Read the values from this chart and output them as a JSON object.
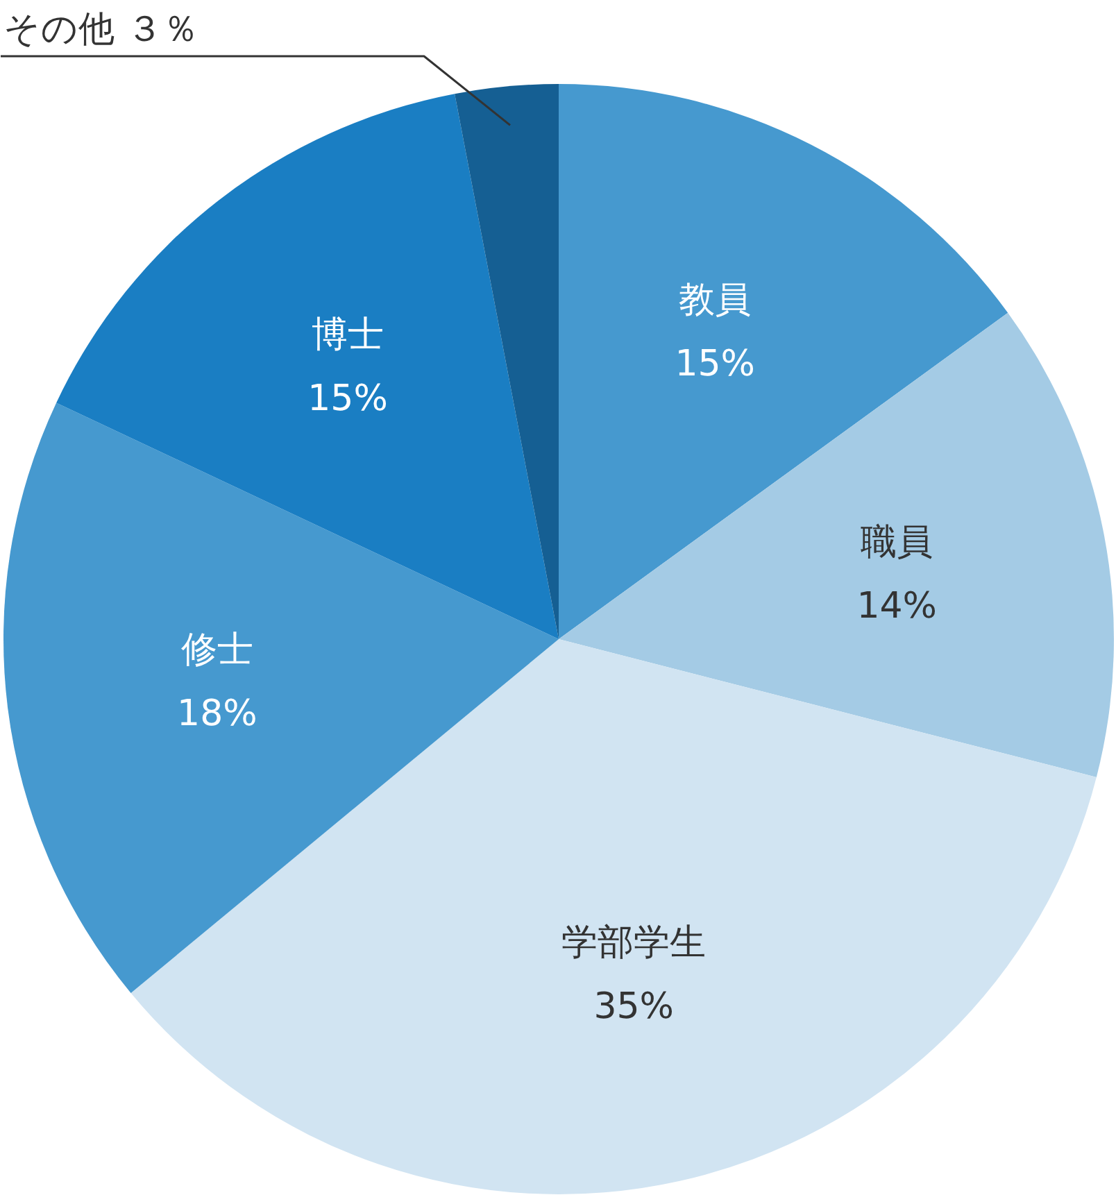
{
  "chart_data": {
    "type": "pie",
    "categories": [
      "教員",
      "職員",
      "学部学生",
      "修士",
      "博士",
      "その他"
    ],
    "values": [
      15,
      14,
      35,
      18,
      15,
      3
    ],
    "value_labels": [
      "15%",
      "14%",
      "35%",
      "18%",
      "15%",
      "３％"
    ],
    "colors": [
      "#4699cf",
      "#a4cbe5",
      "#d1e4f2",
      "#4699cf",
      "#1a7ec3",
      "#155f93"
    ]
  }
}
